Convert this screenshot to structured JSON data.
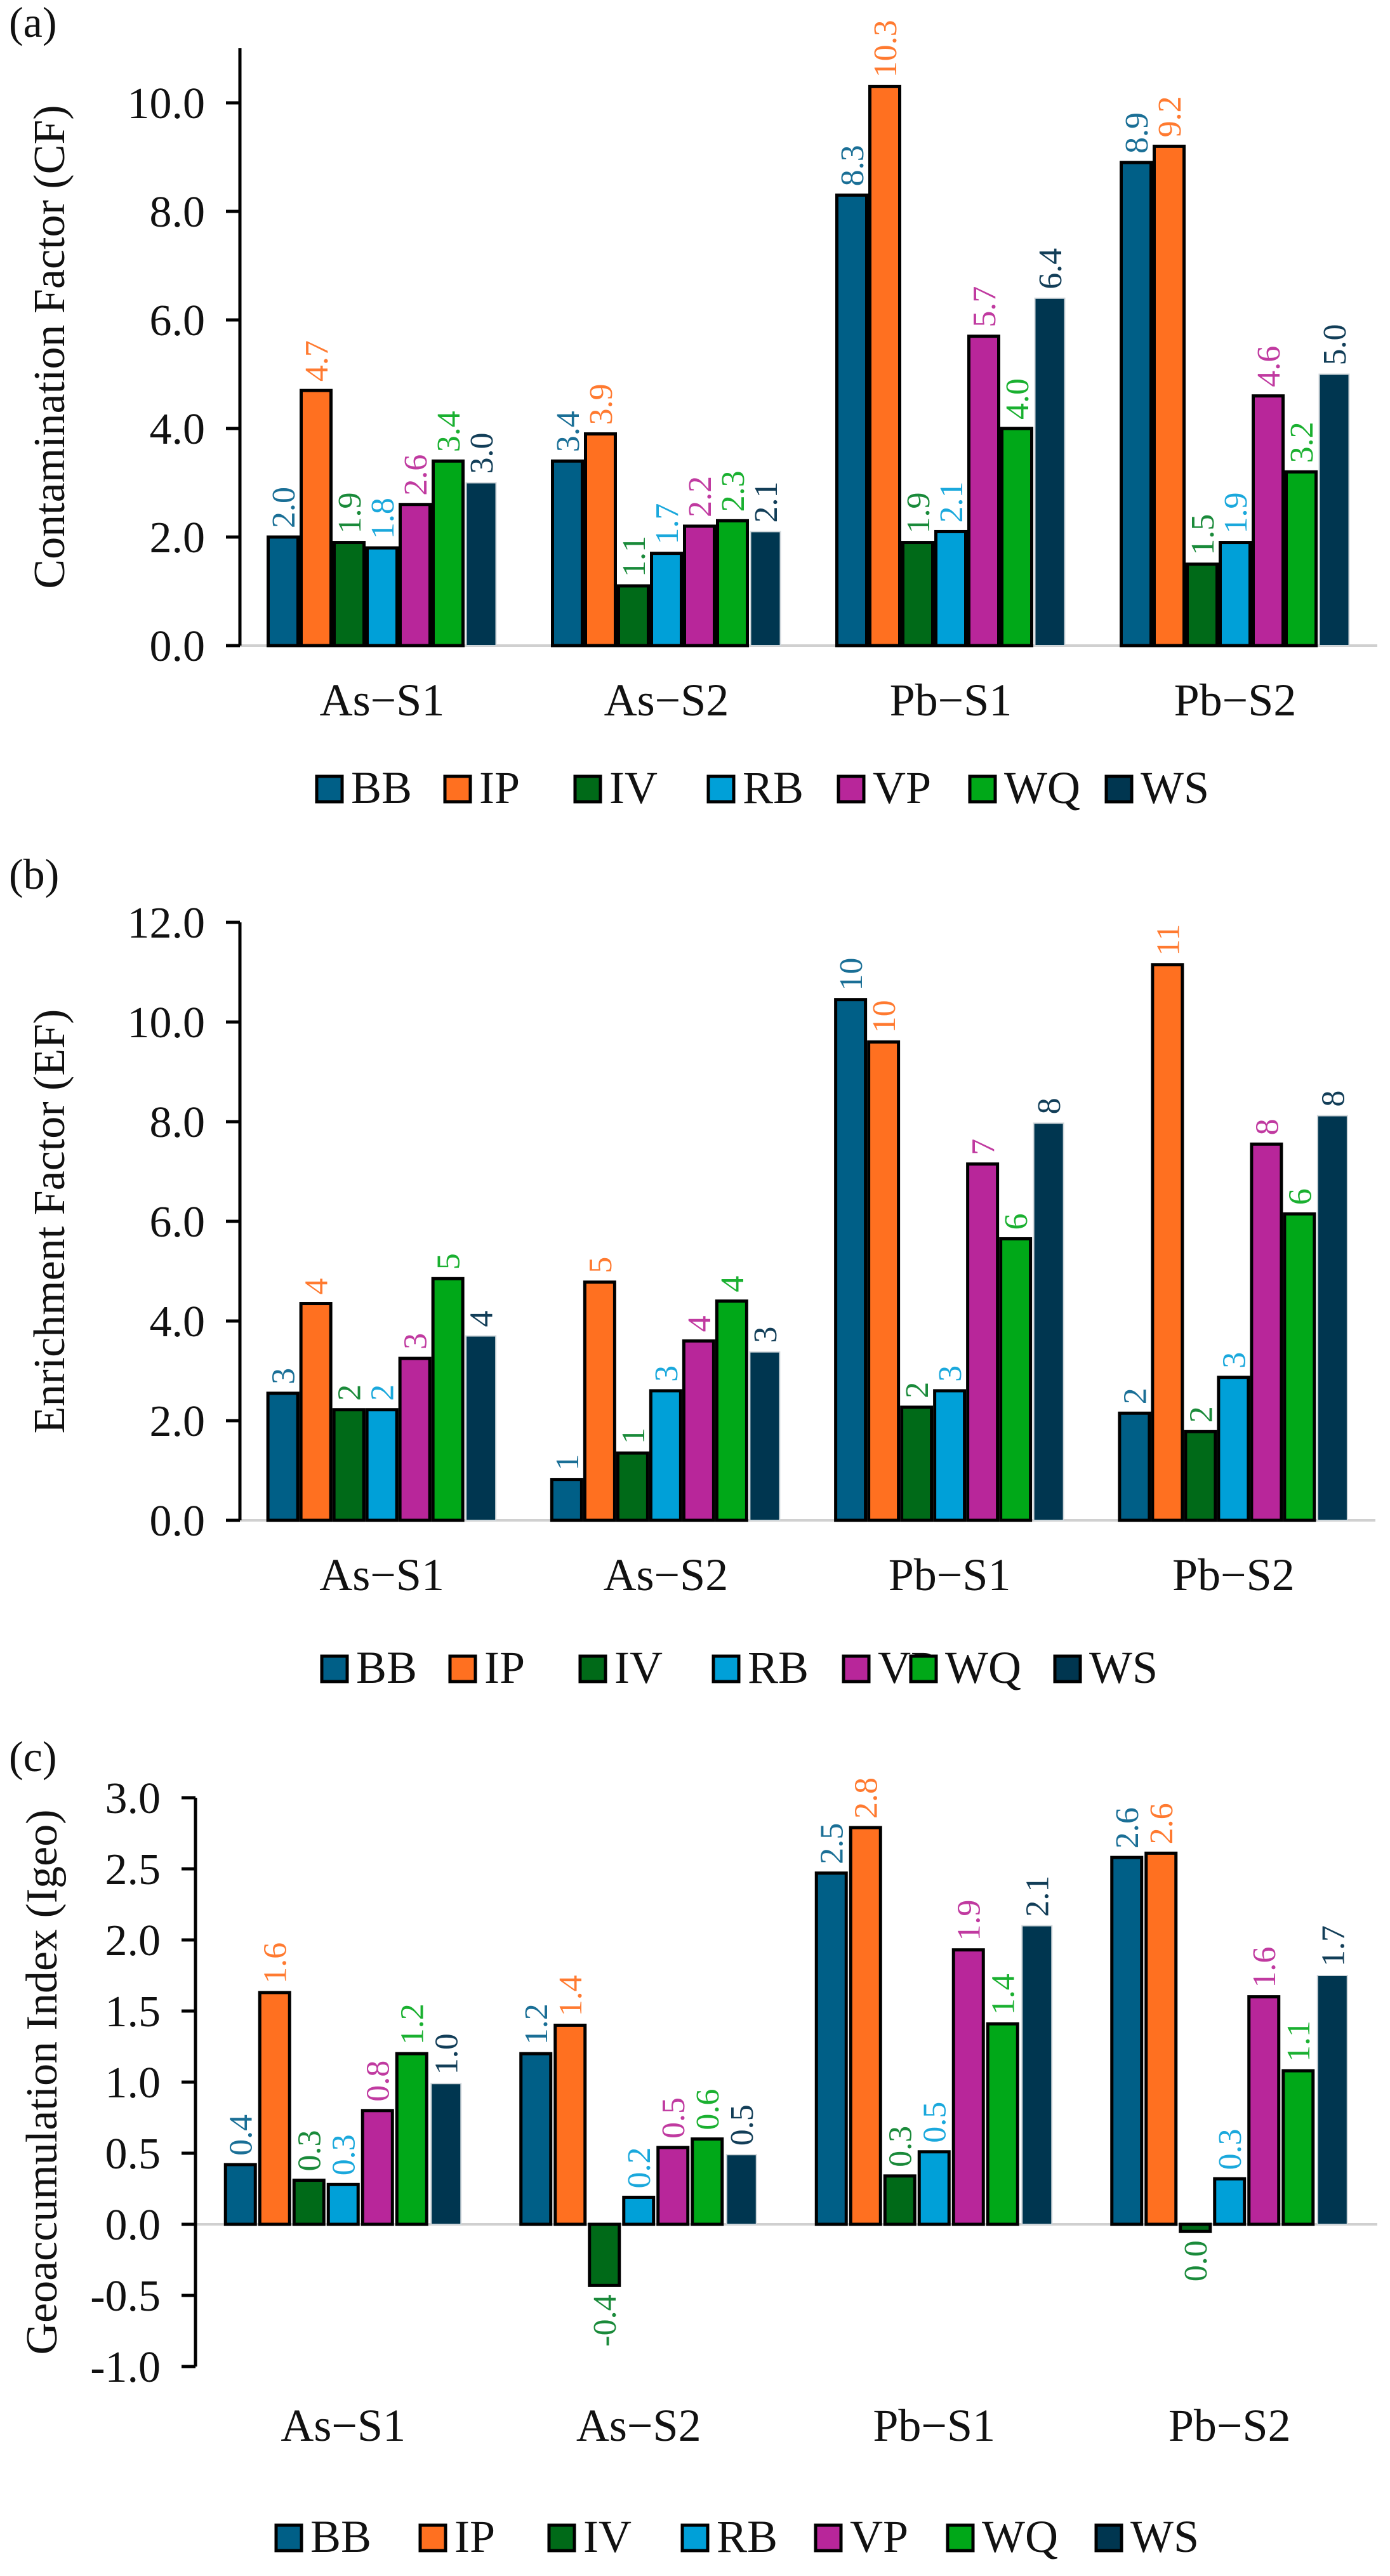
{
  "series_names": [
    "BB",
    "IP",
    "IV",
    "RB",
    "VP",
    "WQ",
    "WS"
  ],
  "colors": {
    "BB": "#005f87",
    "IP": "#ff7020",
    "IV": "#006a18",
    "RB": "#00a0d8",
    "VP": "#b8269a",
    "WQ": "#00a818",
    "WS": "#003650",
    "label_BB": "#1a6f96",
    "label_IP": "#ff7a30",
    "label_IV": "#1a8a3a",
    "label_RB": "#1aa8dc",
    "label_VP": "#c03aa0",
    "label_WQ": "#1ab030",
    "label_WS": "#123e58"
  },
  "chart_data": [
    {
      "type": "bar",
      "panel_label": "(a)",
      "title": "",
      "xlabel": "",
      "ylabel": "Contamination Factor (CF)",
      "categories": [
        "As−S1",
        "As−S2",
        "Pb−S1",
        "Pb−S2"
      ],
      "ylim": [
        0,
        11
      ],
      "yticks": [
        0,
        2,
        4,
        6,
        8,
        10
      ],
      "ytick_labels": [
        "0.0",
        "2.0",
        "4.0",
        "6.0",
        "8.0",
        "10.0"
      ],
      "grid": false,
      "legend_position": "bottom",
      "series": [
        {
          "name": "BB",
          "values": [
            2.0,
            3.4,
            8.3,
            8.9
          ],
          "labels": [
            "2.0",
            "3.4",
            "8.3",
            "8.9"
          ]
        },
        {
          "name": "IP",
          "values": [
            4.7,
            3.9,
            10.3,
            9.2
          ],
          "labels": [
            "4.7",
            "3.9",
            "10.3",
            "9.2"
          ]
        },
        {
          "name": "IV",
          "values": [
            1.9,
            1.1,
            1.9,
            1.5
          ],
          "labels": [
            "1.9",
            "1.1",
            "1.9",
            "1.5"
          ]
        },
        {
          "name": "RB",
          "values": [
            1.8,
            1.7,
            2.1,
            1.9
          ],
          "labels": [
            "1.8",
            "1.7",
            "2.1",
            "1.9"
          ]
        },
        {
          "name": "VP",
          "values": [
            2.6,
            2.2,
            5.7,
            4.6
          ],
          "labels": [
            "2.6",
            "2.2",
            "5.7",
            "4.6"
          ]
        },
        {
          "name": "WQ",
          "values": [
            3.4,
            2.3,
            4.0,
            3.2
          ],
          "labels": [
            "3.4",
            "2.3",
            "4.0",
            "3.2"
          ]
        },
        {
          "name": "WS",
          "values": [
            3.0,
            2.1,
            6.4,
            5.0
          ],
          "labels": [
            "3.0",
            "2.1",
            "6.4",
            "5.0"
          ]
        }
      ]
    },
    {
      "type": "bar",
      "panel_label": "(b)",
      "title": "",
      "xlabel": "",
      "ylabel": "Enrichment Factor (EF)",
      "categories": [
        "As−S1",
        "As−S2",
        "Pb−S1",
        "Pb−S2"
      ],
      "ylim": [
        0,
        12
      ],
      "yticks": [
        0,
        2,
        4,
        6,
        8,
        10,
        12
      ],
      "ytick_labels": [
        "0.0",
        "2.0",
        "4.0",
        "6.0",
        "8.0",
        "10.0",
        "12.0"
      ],
      "grid": false,
      "legend_position": "bottom",
      "series": [
        {
          "name": "BB",
          "values": [
            2.55,
            0.82,
            10.45,
            2.15
          ],
          "labels": [
            "3",
            "1",
            "10",
            "2"
          ]
        },
        {
          "name": "IP",
          "values": [
            4.35,
            4.78,
            9.6,
            11.15
          ],
          "labels": [
            "4",
            "5",
            "10",
            "11"
          ]
        },
        {
          "name": "IV",
          "values": [
            2.22,
            1.35,
            2.27,
            1.78
          ],
          "labels": [
            "2",
            "1",
            "2",
            "2"
          ]
        },
        {
          "name": "RB",
          "values": [
            2.22,
            2.6,
            2.6,
            2.87
          ],
          "labels": [
            "2",
            "3",
            "3",
            "3"
          ]
        },
        {
          "name": "VP",
          "values": [
            3.25,
            3.6,
            7.15,
            7.55
          ],
          "labels": [
            "3",
            "4",
            "7",
            "8"
          ]
        },
        {
          "name": "WQ",
          "values": [
            4.85,
            4.4,
            5.65,
            6.15
          ],
          "labels": [
            "5",
            "4",
            "6",
            "6"
          ]
        },
        {
          "name": "WS",
          "values": [
            3.7,
            3.38,
            7.97,
            8.12
          ],
          "labels": [
            "4",
            "3",
            "8",
            "8"
          ]
        }
      ]
    },
    {
      "type": "bar",
      "panel_label": "(c)",
      "title": "",
      "xlabel": "",
      "ylabel": "Geoaccumulation Index (Igeo)",
      "categories": [
        "As−S1",
        "As−S2",
        "Pb−S1",
        "Pb−S2"
      ],
      "ylim": [
        -1,
        3
      ],
      "yticks": [
        -1,
        -0.5,
        0,
        0.5,
        1,
        1.5,
        2,
        2.5,
        3
      ],
      "ytick_labels": [
        "-1.0",
        "-0.5",
        "0.0",
        "0.5",
        "1.0",
        "1.5",
        "2.0",
        "2.5",
        "3.0"
      ],
      "grid": false,
      "legend_position": "bottom",
      "series": [
        {
          "name": "BB",
          "values": [
            0.42,
            1.2,
            2.47,
            2.58
          ],
          "labels": [
            "0.4",
            "1.2",
            "2.5",
            "2.6"
          ]
        },
        {
          "name": "IP",
          "values": [
            1.63,
            1.4,
            2.79,
            2.61
          ],
          "labels": [
            "1.6",
            "1.4",
            "2.8",
            "2.6"
          ]
        },
        {
          "name": "IV",
          "values": [
            0.31,
            -0.43,
            0.34,
            -0.05
          ],
          "labels": [
            "0.3",
            "-0.4",
            "0.3",
            "0.0"
          ]
        },
        {
          "name": "RB",
          "values": [
            0.28,
            0.19,
            0.51,
            0.32
          ],
          "labels": [
            "0.3",
            "0.2",
            "0.5",
            "0.3"
          ]
        },
        {
          "name": "VP",
          "values": [
            0.8,
            0.54,
            1.93,
            1.6
          ],
          "labels": [
            "0.8",
            "0.5",
            "1.9",
            "1.6"
          ]
        },
        {
          "name": "WQ",
          "values": [
            1.2,
            0.6,
            1.41,
            1.08
          ],
          "labels": [
            "1.2",
            "0.6",
            "1.4",
            "1.1"
          ]
        },
        {
          "name": "WS",
          "values": [
            0.99,
            0.49,
            2.1,
            1.75
          ],
          "labels": [
            "1.0",
            "0.5",
            "2.1",
            "1.7"
          ]
        }
      ]
    }
  ]
}
